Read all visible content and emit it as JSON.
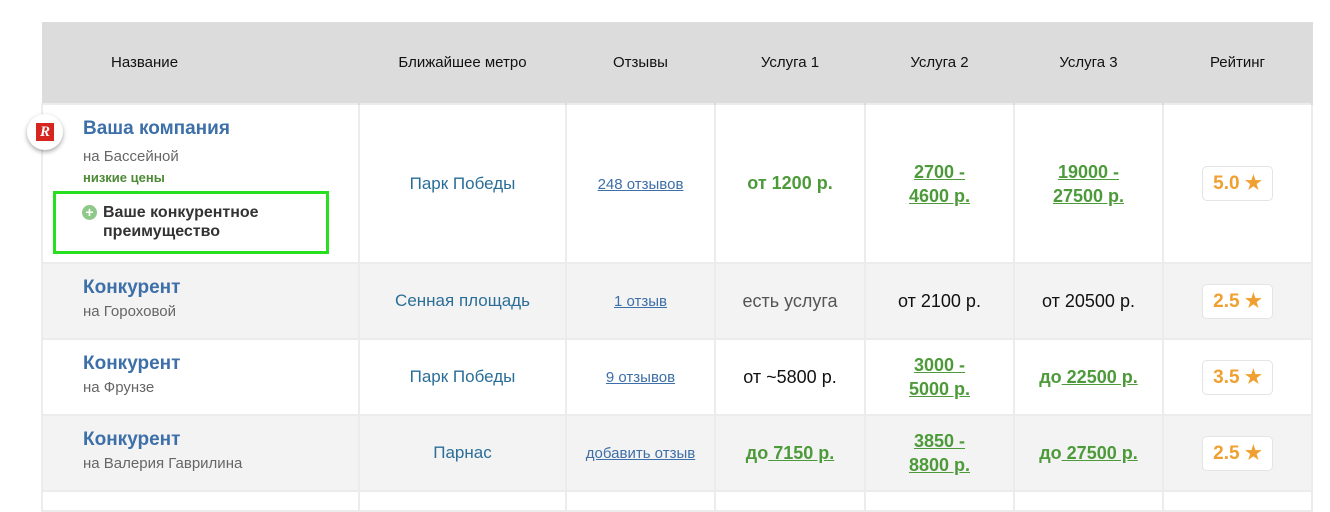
{
  "headers": [
    "Название",
    "Ближайшее метро",
    "Отзывы",
    "Услуга 1",
    "Услуга 2",
    "Услуга 3",
    "Рейтинг"
  ],
  "logo_text": "R",
  "rows": [
    {
      "name": "Ваша компания",
      "address": "на Бассейной",
      "tag": "низкие цены",
      "advantage": "Ваше конкурентное преимущество",
      "metro": "Парк Победы",
      "reviews": "248 отзывов",
      "s1": {
        "prefix": "",
        "text": "от 1200 р.",
        "style": "g"
      },
      "s2": {
        "prefix": "",
        "text": "2700 - 4600 р.",
        "style": "gl"
      },
      "s3": {
        "prefix": "",
        "text": "19000 - 27500 р.",
        "style": "gl"
      },
      "rating": "5.0"
    },
    {
      "name": "Конкурент",
      "address": "на Гороховой",
      "metro": "Сенная площадь",
      "reviews": "1 отзыв",
      "s1": {
        "prefix": "",
        "text": "есть услуга",
        "style": "grey"
      },
      "s2": {
        "prefix": "",
        "text": "от 2100 р.",
        "style": "plain"
      },
      "s3": {
        "prefix": "",
        "text": "от 20500 р.",
        "style": "plain"
      },
      "rating": "2.5"
    },
    {
      "name": "Конкурент",
      "address": "на Фрунзе",
      "metro": "Парк Победы",
      "reviews": "9 отзывов",
      "s1": {
        "prefix": "",
        "text": "от ~5800 р.",
        "style": "plain"
      },
      "s2": {
        "prefix": "",
        "text": "3000 - 5000 р.",
        "style": "gl"
      },
      "s3": {
        "prefix": "до",
        "text": " 22500 р.",
        "style": "gl"
      },
      "rating": "3.5"
    },
    {
      "name": "Конкурент",
      "address": "на Валерия Гаврилина",
      "metro": "Парнас",
      "reviews": "добавить отзыв",
      "s1": {
        "prefix": "до",
        "text": " 7150 р.",
        "style": "gl"
      },
      "s2": {
        "prefix": "",
        "text": "3850 - 8800 р.",
        "style": "gl"
      },
      "s3": {
        "prefix": "до",
        "text": " 27500 р.",
        "style": "gl"
      },
      "rating": "2.5"
    }
  ],
  "colors": {
    "company": "#3d6fa8",
    "price_green": "#4d9a3a",
    "rating": "#f0a030",
    "highlight": "#26e01f"
  }
}
